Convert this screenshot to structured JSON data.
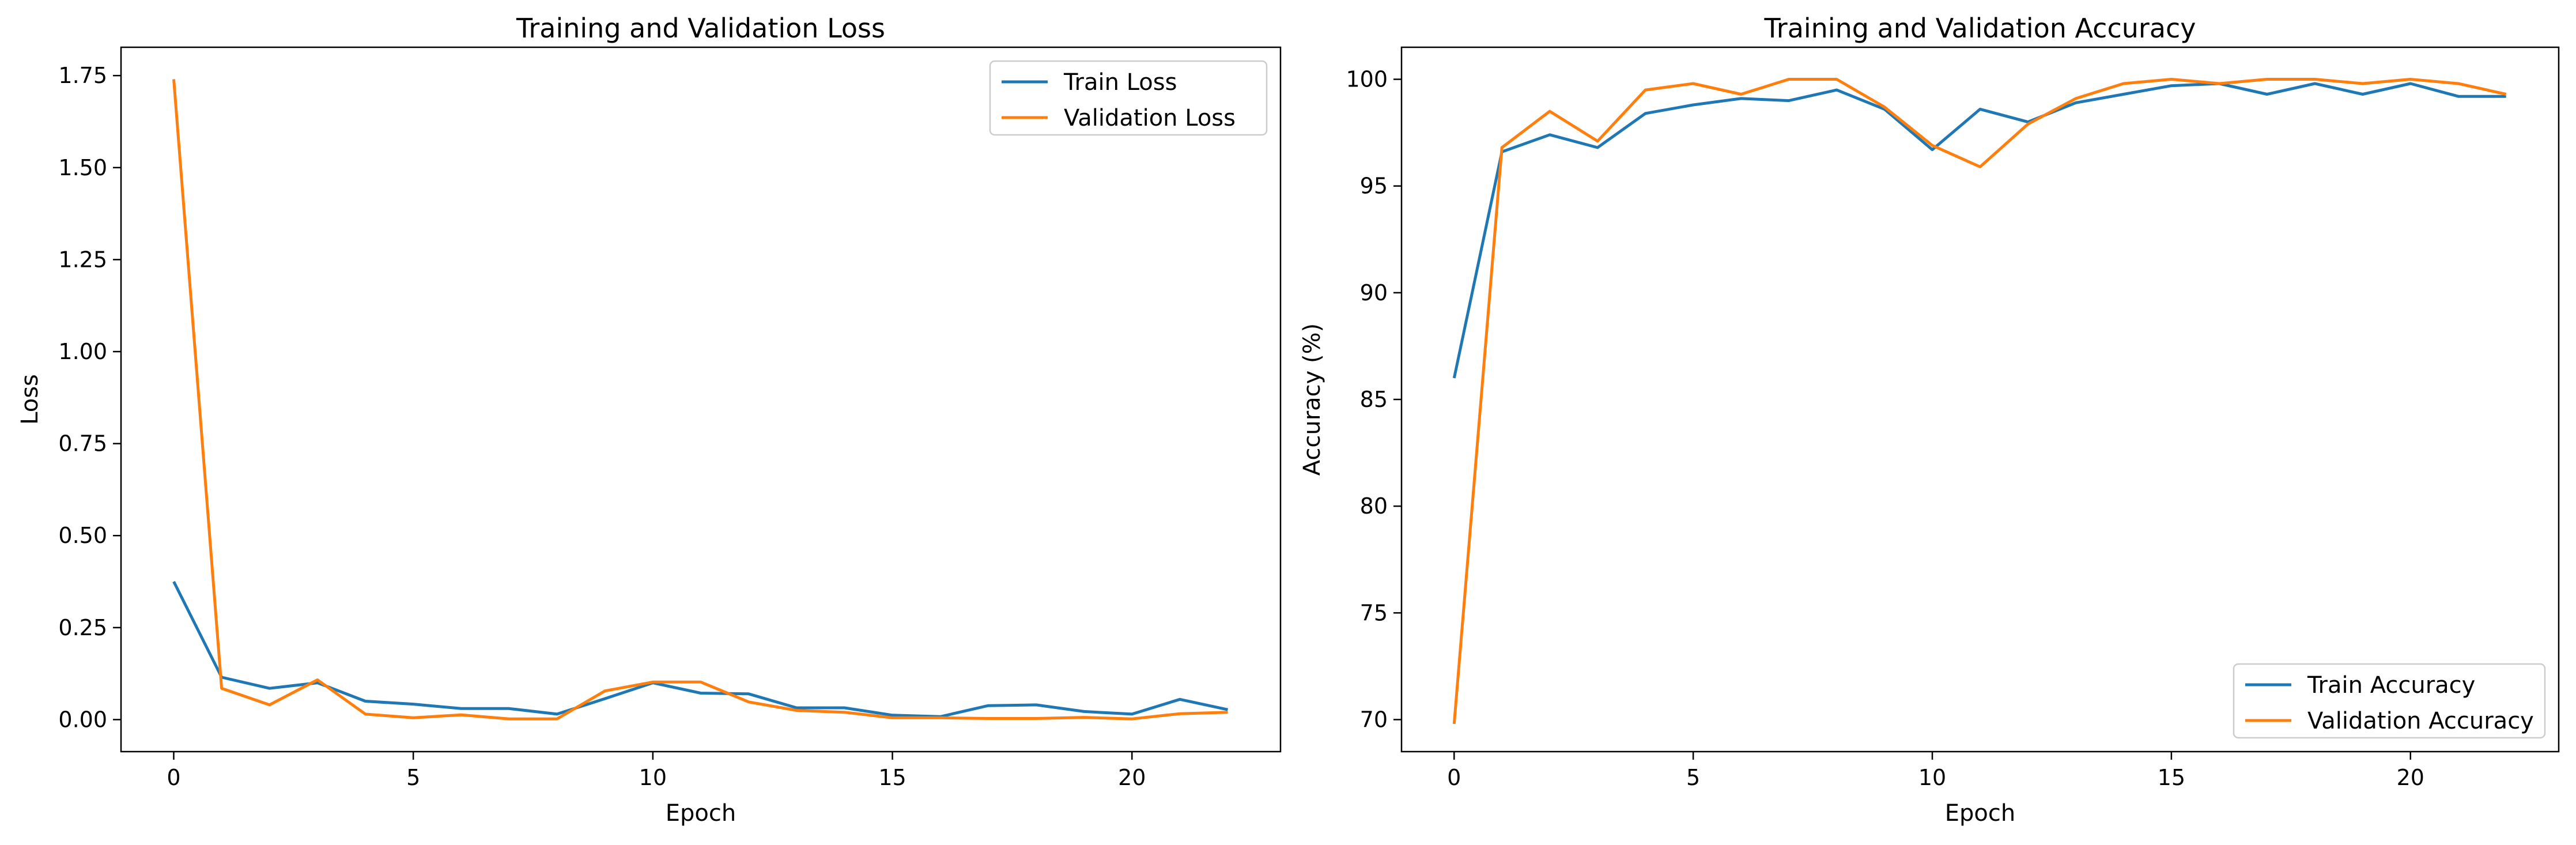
{
  "colors": {
    "train": "#1f77b4",
    "validation": "#ff7f0e"
  },
  "chart_data": [
    {
      "type": "line",
      "title": "Training and Validation Loss",
      "xlabel": "Epoch",
      "ylabel": "Loss",
      "xlim": [
        -1.1,
        23.1
      ],
      "ylim": [
        -0.087,
        1.827
      ],
      "xticks": [
        0,
        5,
        10,
        15,
        20
      ],
      "yticks": [
        0.0,
        0.25,
        0.5,
        0.75,
        1.0,
        1.25,
        1.5,
        1.75
      ],
      "ytick_labels": [
        "0.00",
        "0.25",
        "0.50",
        "0.75",
        "1.00",
        "1.25",
        "1.50",
        "1.75"
      ],
      "legend_position": "upper right",
      "grid": false,
      "x": [
        0,
        1,
        2,
        3,
        4,
        5,
        6,
        7,
        8,
        9,
        10,
        11,
        12,
        13,
        14,
        15,
        16,
        17,
        18,
        19,
        20,
        21,
        22
      ],
      "series": [
        {
          "name": "Train Loss",
          "color_key": "train",
          "values": [
            0.375,
            0.115,
            0.085,
            0.1,
            0.05,
            0.042,
            0.03,
            0.03,
            0.015,
            0.057,
            0.1,
            0.072,
            0.07,
            0.032,
            0.032,
            0.012,
            0.008,
            0.038,
            0.04,
            0.022,
            0.015,
            0.055,
            0.027
          ]
        },
        {
          "name": "Validation Loss",
          "color_key": "validation",
          "values": [
            1.74,
            0.085,
            0.04,
            0.108,
            0.015,
            0.005,
            0.013,
            0.002,
            0.002,
            0.078,
            0.102,
            0.102,
            0.048,
            0.025,
            0.02,
            0.005,
            0.005,
            0.003,
            0.003,
            0.006,
            0.002,
            0.016,
            0.02
          ]
        }
      ]
    },
    {
      "type": "line",
      "title": "Training and Validation Accuracy",
      "xlabel": "Epoch",
      "ylabel": "Accuracy (%)",
      "xlim": [
        -1.1,
        23.1
      ],
      "ylim": [
        68.5,
        101.5
      ],
      "xticks": [
        0,
        5,
        10,
        15,
        20
      ],
      "yticks": [
        70,
        75,
        80,
        85,
        90,
        95,
        100
      ],
      "ytick_labels": [
        "70",
        "75",
        "80",
        "85",
        "90",
        "95",
        "100"
      ],
      "legend_position": "lower right",
      "grid": false,
      "x": [
        0,
        1,
        2,
        3,
        4,
        5,
        6,
        7,
        8,
        9,
        10,
        11,
        12,
        13,
        14,
        15,
        16,
        17,
        18,
        19,
        20,
        21,
        22
      ],
      "series": [
        {
          "name": "Train Accuracy",
          "color_key": "train",
          "values": [
            86.0,
            96.6,
            97.4,
            96.8,
            98.4,
            98.8,
            99.1,
            99.0,
            99.5,
            98.6,
            96.7,
            98.6,
            98.0,
            98.9,
            99.3,
            99.7,
            99.8,
            99.3,
            99.8,
            99.3,
            99.8,
            99.2,
            99.2
          ]
        },
        {
          "name": "Validation Accuracy",
          "color_key": "validation",
          "values": [
            69.8,
            96.8,
            98.5,
            97.1,
            99.5,
            99.8,
            99.3,
            100.0,
            100.0,
            98.7,
            96.9,
            95.9,
            97.9,
            99.1,
            99.8,
            100.0,
            99.8,
            100.0,
            100.0,
            99.8,
            100.0,
            99.8,
            99.3
          ]
        }
      ]
    }
  ]
}
